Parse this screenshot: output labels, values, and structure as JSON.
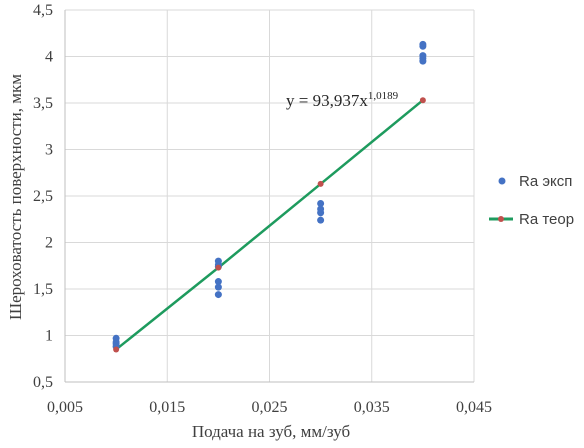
{
  "chart_data": {
    "type": "scatter",
    "xlabel": "Подача на зуб, мм/зуб",
    "ylabel": "Шероховатость поверхности, мкм",
    "xlim": [
      0.005,
      0.045
    ],
    "ylim": [
      0.5,
      4.5
    ],
    "x_ticks": [
      "0,005",
      "0,015",
      "0,025",
      "0,035",
      "0,045"
    ],
    "y_ticks": [
      "0,5",
      "1",
      "1,5",
      "2",
      "2,5",
      "3",
      "3,5",
      "4",
      "4,5"
    ],
    "x_tick_values": [
      0.005,
      0.015,
      0.025,
      0.035,
      0.045
    ],
    "y_tick_values": [
      0.5,
      1,
      1.5,
      2,
      2.5,
      3,
      3.5,
      4,
      4.5
    ],
    "grid": true,
    "legend_position": "right",
    "series": [
      {
        "name": "Ra эксп",
        "color": "#4472C4",
        "marker": "circle",
        "points": [
          [
            0.01,
            0.97
          ],
          [
            0.01,
            0.93
          ],
          [
            0.01,
            0.91
          ],
          [
            0.01,
            0.88
          ],
          [
            0.02,
            1.8
          ],
          [
            0.02,
            1.76
          ],
          [
            0.02,
            1.74
          ],
          [
            0.02,
            1.58
          ],
          [
            0.02,
            1.52
          ],
          [
            0.02,
            1.44
          ],
          [
            0.03,
            2.42
          ],
          [
            0.03,
            2.36
          ],
          [
            0.03,
            2.32
          ],
          [
            0.03,
            2.24
          ],
          [
            0.04,
            4.13
          ],
          [
            0.04,
            4.11
          ],
          [
            0.04,
            4.01
          ],
          [
            0.04,
            3.98
          ],
          [
            0.04,
            3.95
          ]
        ]
      },
      {
        "name": "Ra теор",
        "color": "#1E9B5E",
        "marker_color": "#C0504D",
        "marker": "circle-line",
        "points": [
          [
            0.01,
            0.85
          ],
          [
            0.02,
            1.73
          ],
          [
            0.03,
            2.63
          ],
          [
            0.04,
            3.53
          ]
        ]
      }
    ],
    "annotations": {
      "equation_base": "y = 93,937x",
      "equation_exp": "1,0189"
    }
  }
}
